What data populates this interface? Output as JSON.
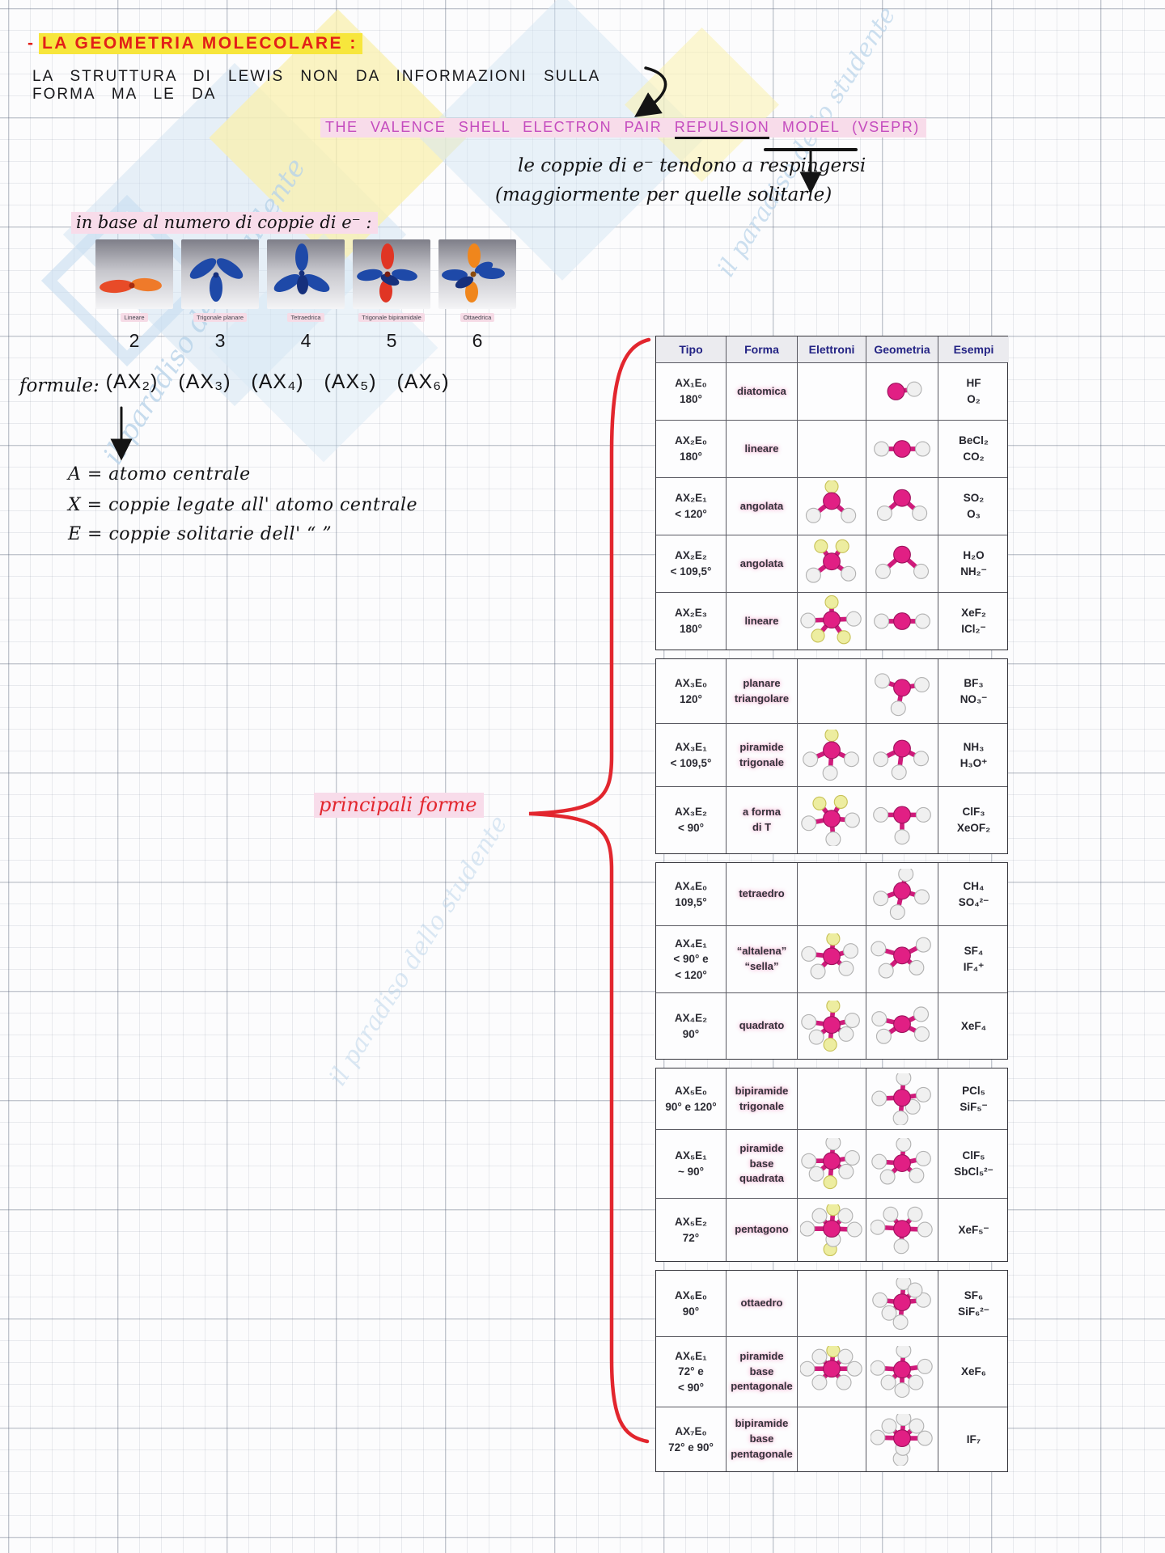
{
  "page": {
    "title_dash": "-",
    "title_text": "LA GEOMETRIA MOLECOLARE :",
    "line2": "LA STRUTTURA DI LEWIS NON DA INFORMAZIONI SULLA FORMA MA LE DA",
    "vsepr": {
      "part1": "THE VALENCE SHELL ELECTRON PAIR",
      "repulsion": "REPULSION",
      "part2": "MODEL (VSEPR)"
    },
    "coppie_line1": "le coppie di e⁻ tendono a respingersi",
    "coppie_line2": "(maggiormente per quelle solitarie)",
    "base_line": "in base al numero di coppie di e⁻ :",
    "formule_label": "formule:",
    "defs": [
      "A = atomo centrale",
      "X = coppie legate all' atomo centrale",
      "E = coppie solitarie dell'  “      ”"
    ],
    "principali_label": "principali forme",
    "watermark_text": "il paradiso dello studente"
  },
  "colors": {
    "annotation_red": "#e2262e",
    "highlight_yellow": "#f7e63c",
    "highlight_pink": "#f8dcea",
    "vsepr_magenta": "#c44bbe",
    "molecule_center": "#e11f84",
    "lone_pair_yellow": "#ededa0",
    "balloon_blue": "#1e49a8",
    "balloon_red": "#e03524",
    "balloon_orange": "#f0861c"
  },
  "balloons": [
    {
      "caption": "Lineare",
      "number": "2",
      "formula": "(AX₂)",
      "icon": "balloon-linear"
    },
    {
      "caption": "Trigonale planare",
      "number": "3",
      "formula": "(AX₃)",
      "icon": "balloon-trigonal-planar"
    },
    {
      "caption": "Tetraedrica",
      "number": "4",
      "formula": "(AX₄)",
      "icon": "balloon-tetrahedral"
    },
    {
      "caption": "Trigonale bipiramidale",
      "number": "5",
      "formula": "(AX₅)",
      "icon": "balloon-trigonal-bipyramidal"
    },
    {
      "caption": "Ottaedrica",
      "number": "6",
      "formula": "(AX₆)",
      "icon": "balloon-octahedral"
    }
  ],
  "table": {
    "headers": [
      "Tipo",
      "Forma",
      "Elettroni",
      "Geometria",
      "Esempi"
    ],
    "rows": [
      {
        "tipo": "AX₁E₀\n180°",
        "forma": "diatomica",
        "elettroni": "",
        "geometria": "diatomic",
        "esempi": "HF\nO₂"
      },
      {
        "tipo": "AX₂E₀\n180°",
        "forma": "lineare",
        "elettroni": "",
        "geometria": "linear-2",
        "esempi": "BeCl₂\nCO₂"
      },
      {
        "tipo": "AX₂E₁\n< 120°",
        "forma": "angolata",
        "elettroni": "bent-1-lone",
        "geometria": "bent-120",
        "esempi": "SO₂\nO₃"
      },
      {
        "tipo": "AX₂E₂\n< 109,5°",
        "forma": "angolata",
        "elettroni": "tetra-2-lone",
        "geometria": "bent-109",
        "esempi": "H₂O\nNH₂⁻"
      },
      {
        "tipo": "AX₂E₃\n180°",
        "forma": "lineare",
        "elettroni": "tbp-3-lone",
        "geometria": "linear-2",
        "esempi": "XeF₂\nICl₂⁻"
      },
      {
        "gap": true,
        "tipo": "AX₃E₀\n120°",
        "forma": "planare\ntriangolare",
        "elettroni": "",
        "geometria": "trigonal-planar",
        "esempi": "BF₃\nNO₃⁻"
      },
      {
        "tipo": "AX₃E₁\n< 109,5°",
        "forma": "piramide\ntrigonale",
        "elettroni": "tetra-1-lone",
        "geometria": "trigonal-pyramid",
        "esempi": "NH₃\nH₃O⁺"
      },
      {
        "tipo": "AX₃E₂\n< 90°",
        "forma": "a forma\ndi T",
        "elettroni": "tbp-2-lone",
        "geometria": "t-shape",
        "esempi": "ClF₃\nXeOF₂"
      },
      {
        "gap": true,
        "tipo": "AX₄E₀\n109,5°",
        "forma": "tetraedro",
        "elettroni": "",
        "geometria": "tetrahedron",
        "esempi": "CH₄\nSO₄²⁻"
      },
      {
        "tipo": "AX₄E₁\n< 90° e\n< 120°",
        "forma": "“altalena”\n“sella”",
        "elettroni": "tbp-1-lone",
        "geometria": "seesaw",
        "esempi": "SF₄\nIF₄⁺"
      },
      {
        "tipo": "AX₄E₂\n90°",
        "forma": "quadrato",
        "elettroni": "oct-2-lone",
        "geometria": "square-planar",
        "esempi": "XeF₄"
      },
      {
        "gap": true,
        "tipo": "AX₅E₀\n90° e 120°",
        "forma": "bipiramide\ntrigonale",
        "elettroni": "",
        "geometria": "trigonal-bipyramid",
        "esempi": "PCl₅\nSiF₅⁻"
      },
      {
        "tipo": "AX₅E₁\n~ 90°",
        "forma": "piramide\nbase\nquadrata",
        "elettroni": "oct-1-lone",
        "geometria": "square-pyramid",
        "esempi": "ClF₅\nSbCl₅²⁻"
      },
      {
        "tipo": "AX₅E₂\n72°",
        "forma": "pentagono",
        "elettroni": "pbp-2-lone",
        "geometria": "pentagon",
        "esempi": "XeF₅⁻"
      },
      {
        "gap": true,
        "tipo": "AX₆E₀\n90°",
        "forma": "ottaedro",
        "elettroni": "",
        "geometria": "octahedron",
        "esempi": "SF₆\nSiF₆²⁻"
      },
      {
        "tipo": "AX₆E₁\n72° e\n< 90°",
        "forma": "piramide\nbase\npentagonale",
        "elettroni": "pbp-1-lone",
        "geometria": "pentagonal-pyramid",
        "esempi": "XeF₆"
      },
      {
        "tipo": "AX₇E₀\n72° e 90°",
        "forma": "bipiramide\nbase\npentagonale",
        "elettroni": "",
        "geometria": "pentagonal-bipyramid",
        "esempi": "IF₇"
      }
    ]
  }
}
